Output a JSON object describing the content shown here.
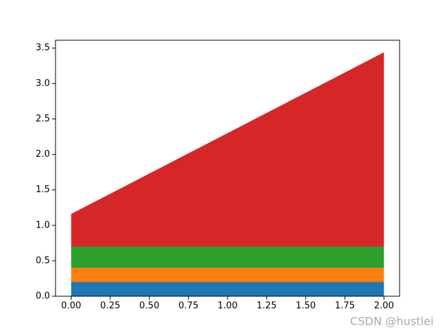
{
  "chart_data": {
    "type": "stackplot",
    "x": [
      0,
      2
    ],
    "series": [
      {
        "color": "#1f77b4",
        "values": [
          0.2,
          0.2
        ]
      },
      {
        "color": "#ff7f0e",
        "values": [
          0.2,
          0.2
        ]
      },
      {
        "color": "#2ca02c",
        "values": [
          0.3,
          0.3
        ]
      },
      {
        "color": "#d62728",
        "values": [
          0.46,
          2.74
        ]
      }
    ],
    "xlim": [
      -0.1,
      2.1
    ],
    "ylim": [
      0,
      3.61
    ],
    "xticks": [
      {
        "value": 0,
        "label": "0.00"
      },
      {
        "value": 0.25,
        "label": "0.25"
      },
      {
        "value": 0.5,
        "label": "0.50"
      },
      {
        "value": 0.75,
        "label": "0.75"
      },
      {
        "value": 1,
        "label": "1.00"
      },
      {
        "value": 1.25,
        "label": "1.25"
      },
      {
        "value": 1.5,
        "label": "1.50"
      },
      {
        "value": 1.75,
        "label": "1.75"
      },
      {
        "value": 2,
        "label": "2.00"
      }
    ],
    "yticks": [
      {
        "value": 0,
        "label": "0.0"
      },
      {
        "value": 0.5,
        "label": "0.5"
      },
      {
        "value": 1,
        "label": "1.0"
      },
      {
        "value": 1.5,
        "label": "1.5"
      },
      {
        "value": 2,
        "label": "2.0"
      },
      {
        "value": 2.5,
        "label": "2.5"
      },
      {
        "value": 3,
        "label": "3.0"
      },
      {
        "value": 3.5,
        "label": "3.5"
      }
    ],
    "watermark": "CSDN @hustlei"
  }
}
